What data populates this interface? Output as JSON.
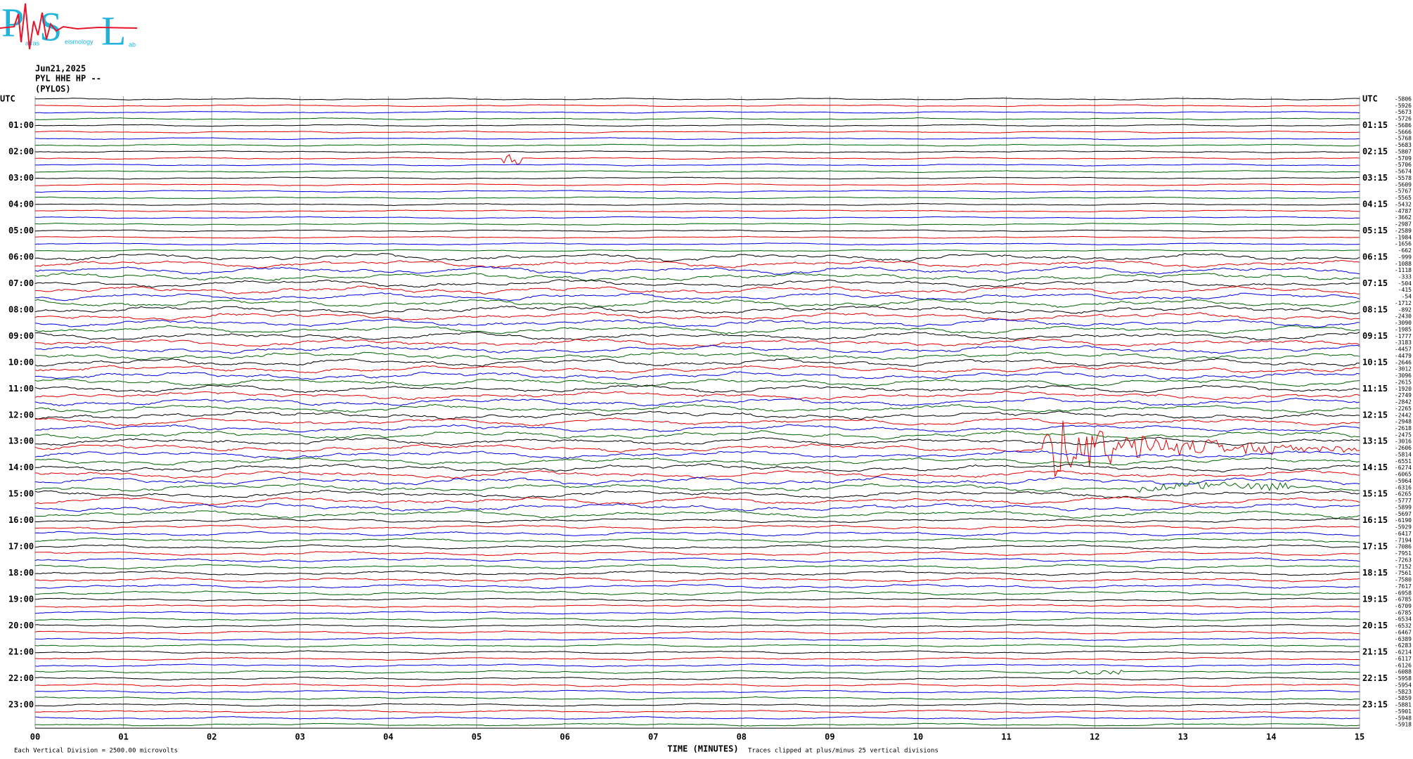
{
  "logo": {
    "letters": [
      "P",
      "S",
      "L"
    ],
    "words": [
      "atras",
      "eismology",
      "ab"
    ]
  },
  "header": {
    "date": "Jun21,2025",
    "station": "PYL HHE HP --",
    "place": "(PYLOS)"
  },
  "left_labels": [
    "UTC",
    "01:00",
    "02:00",
    "03:00",
    "04:00",
    "05:00",
    "06:00",
    "07:00",
    "08:00",
    "09:00",
    "10:00",
    "11:00",
    "12:00",
    "13:00",
    "14:00",
    "15:00",
    "16:00",
    "17:00",
    "18:00",
    "19:00",
    "20:00",
    "21:00",
    "22:00",
    "23:00"
  ],
  "right_labels": [
    "UTC",
    "01:15",
    "02:15",
    "03:15",
    "04:15",
    "05:15",
    "06:15",
    "07:15",
    "08:15",
    "09:15",
    "10:15",
    "11:15",
    "12:15",
    "13:15",
    "14:15",
    "15:15",
    "16:15",
    "17:15",
    "18:15",
    "19:15",
    "20:15",
    "21:15",
    "22:15",
    "23:15"
  ],
  "row_offsets": [
    -5806,
    -5926,
    -5673,
    -5726,
    -5686,
    -5666,
    -5768,
    -5683,
    -5807,
    -5709,
    -5706,
    -5674,
    -5578,
    -5609,
    -5767,
    -5565,
    -5432,
    -4787,
    -3662,
    -2987,
    -2589,
    -1984,
    -1656,
    -662,
    -999,
    -1088,
    -1118,
    -333,
    -504,
    -415,
    -54,
    -1712,
    -892,
    -2430,
    -3090,
    -1985,
    -1777,
    -3183,
    -4457,
    -4479,
    -2646,
    -3012,
    -3096,
    -2615,
    -1920,
    -2749,
    -2842,
    -2265,
    -2442,
    -2948,
    -2618,
    -2475,
    -3016,
    -2606,
    -5814,
    -6551,
    -6274,
    -6065,
    -5964,
    -6316,
    -6265,
    -5777,
    -5899,
    -5697,
    -6190,
    -5929,
    -6417,
    -7194,
    -7086,
    -7951,
    -7263,
    -7152,
    -7561,
    -7580,
    -7617,
    -6958,
    -6785,
    -6709,
    -6785,
    -6534,
    -6532,
    -6467,
    -6389,
    -6283,
    -6214,
    -6117,
    -6126,
    -6088,
    -5958,
    -5954,
    -5823,
    -5859,
    -5881,
    -5901,
    -5948,
    -5918
  ],
  "minute_labels": [
    "00",
    "01",
    "02",
    "03",
    "04",
    "05",
    "06",
    "07",
    "08",
    "09",
    "10",
    "11",
    "12",
    "13",
    "14",
    "15"
  ],
  "footer": {
    "scale": "Each Vertical Division = 2500.00 microvolts",
    "axis_title": "TIME (MINUTES)",
    "clip_note": "Traces clipped at plus/minus 25 vertical divisions"
  }
}
